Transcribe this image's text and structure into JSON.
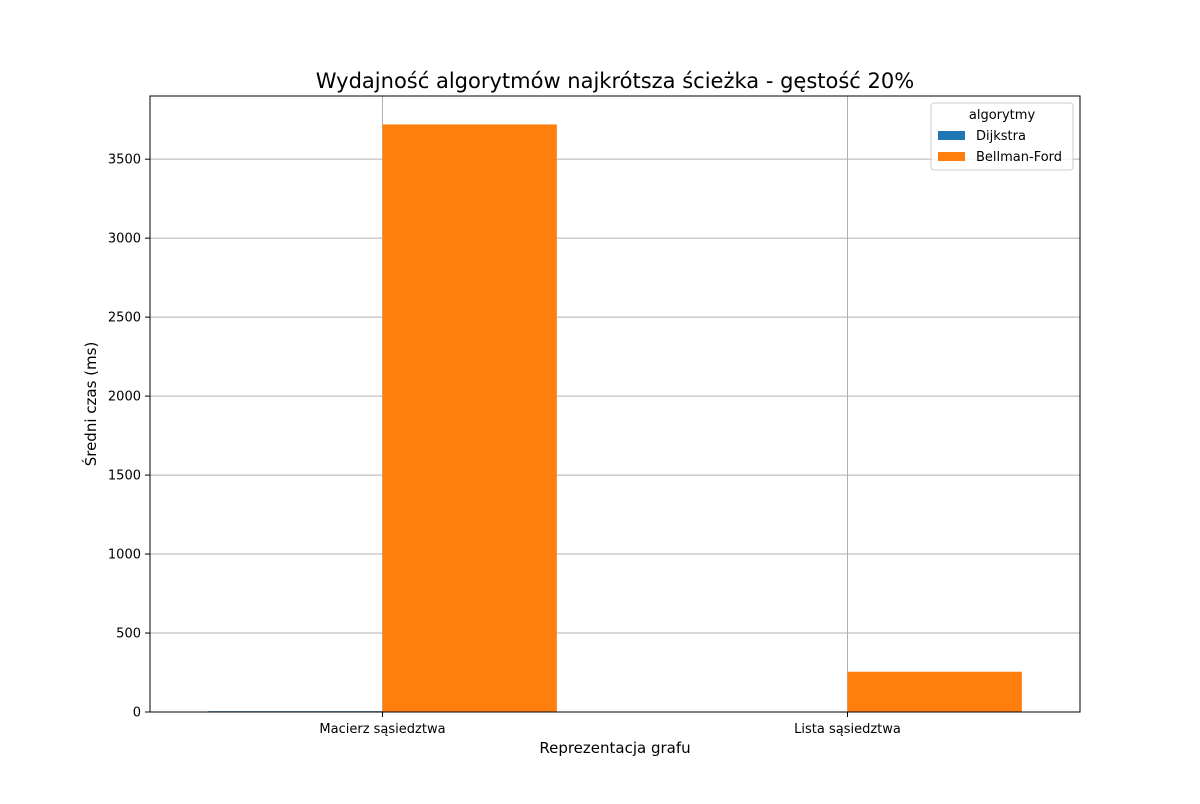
{
  "chart_data": {
    "type": "bar",
    "title": "Wydajność algorytmów najkrótsza ścieżka - gęstość 20%",
    "xlabel": "Reprezentacja grafu",
    "ylabel": "Średni czas (ms)",
    "categories": [
      "Macierz sąsiedztwa",
      "Lista sąsiedztwa"
    ],
    "series": [
      {
        "name": "Dijkstra",
        "values": [
          5,
          1
        ],
        "color": "#1f77b4"
      },
      {
        "name": "Bellman-Ford",
        "values": [
          3720,
          255
        ],
        "color": "#ff7f0e"
      }
    ],
    "ylim": [
      0,
      3900
    ],
    "yticks": [
      0,
      500,
      1000,
      1500,
      2000,
      2500,
      3000,
      3500
    ],
    "grid": true,
    "legend": {
      "title": "algorytmy",
      "position": "top-right"
    }
  }
}
